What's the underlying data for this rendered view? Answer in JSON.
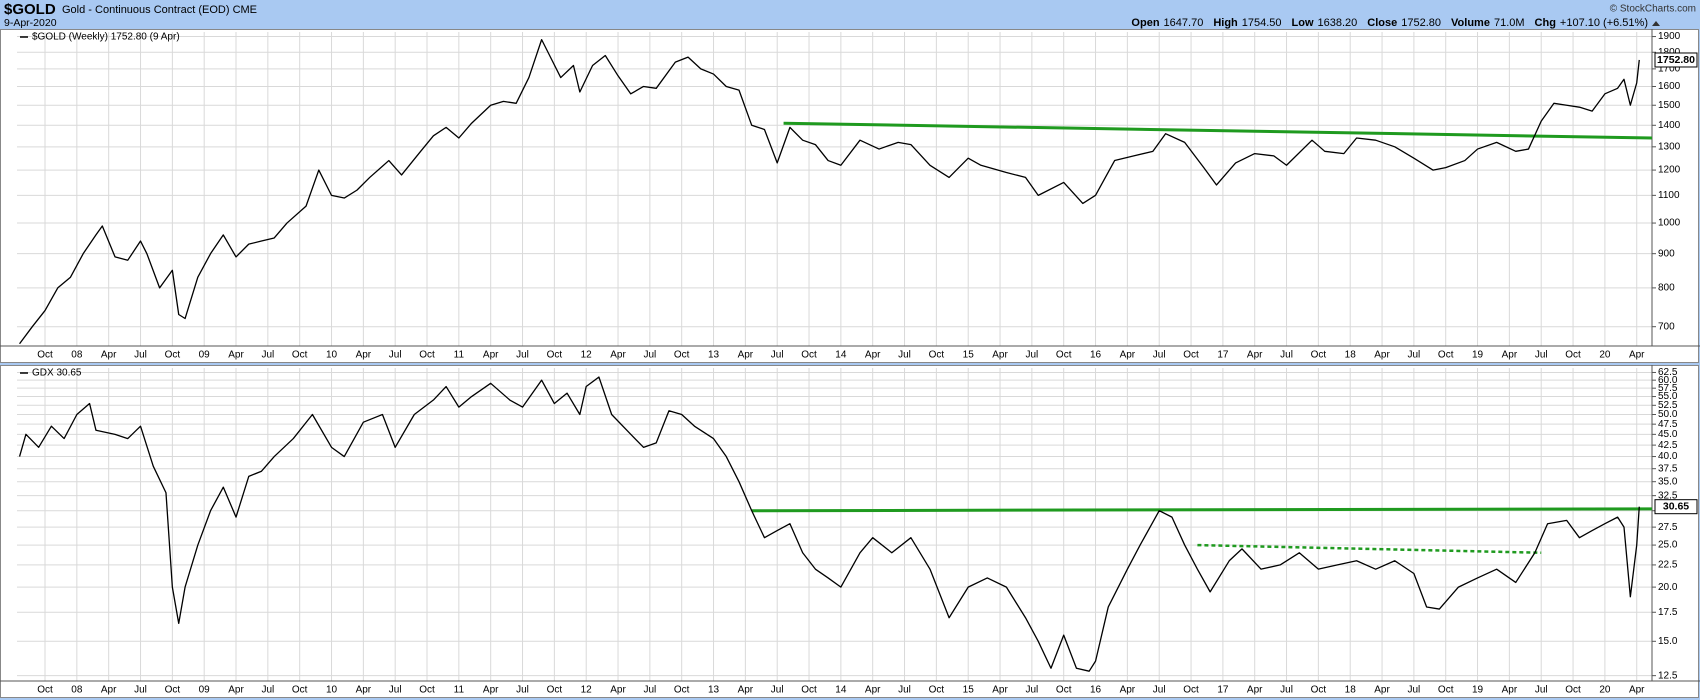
{
  "header": {
    "symbol": "$GOLD",
    "description": "Gold - Continuous Contract (EOD) CME",
    "date": "9-Apr-2020",
    "quote": [
      {
        "label": "Open",
        "value": "1647.70"
      },
      {
        "label": "High",
        "value": "1754.50"
      },
      {
        "label": "Low",
        "value": "1638.20"
      },
      {
        "label": "Close",
        "value": "1752.80"
      },
      {
        "label": "Volume",
        "value": "71.0M"
      },
      {
        "label": "Chg",
        "value": "+107.10 (+6.51%)"
      }
    ],
    "credit": "© StockCharts.com"
  },
  "chart_data": [
    {
      "type": "line",
      "log_scale": true,
      "grid": true,
      "last_value_label": "1752.80",
      "xlim": [
        2007.53,
        2020.37
      ],
      "ylim": [
        655,
        1930
      ],
      "yticks": [
        700,
        800,
        900,
        1000,
        1100,
        1200,
        1300,
        1400,
        1500,
        1600,
        1700,
        1800,
        1900
      ],
      "xticks": [
        {
          "value": 2007.75,
          "label": "Oct"
        },
        {
          "value": 2008,
          "label": "08"
        },
        {
          "value": 2008.25,
          "label": "Apr"
        },
        {
          "value": 2008.5,
          "label": "Jul"
        },
        {
          "value": 2008.75,
          "label": "Oct"
        },
        {
          "value": 2009,
          "label": "09"
        },
        {
          "value": 2009.25,
          "label": "Apr"
        },
        {
          "value": 2009.5,
          "label": "Jul"
        },
        {
          "value": 2009.75,
          "label": "Oct"
        },
        {
          "value": 2010,
          "label": "10"
        },
        {
          "value": 2010.25,
          "label": "Apr"
        },
        {
          "value": 2010.5,
          "label": "Jul"
        },
        {
          "value": 2010.75,
          "label": "Oct"
        },
        {
          "value": 2011,
          "label": "11"
        },
        {
          "value": 2011.25,
          "label": "Apr"
        },
        {
          "value": 2011.5,
          "label": "Jul"
        },
        {
          "value": 2011.75,
          "label": "Oct"
        },
        {
          "value": 2012,
          "label": "12"
        },
        {
          "value": 2012.25,
          "label": "Apr"
        },
        {
          "value": 2012.5,
          "label": "Jul"
        },
        {
          "value": 2012.75,
          "label": "Oct"
        },
        {
          "value": 2013,
          "label": "13"
        },
        {
          "value": 2013.25,
          "label": "Apr"
        },
        {
          "value": 2013.5,
          "label": "Jul"
        },
        {
          "value": 2013.75,
          "label": "Oct"
        },
        {
          "value": 2014,
          "label": "14"
        },
        {
          "value": 2014.25,
          "label": "Apr"
        },
        {
          "value": 2014.5,
          "label": "Jul"
        },
        {
          "value": 2014.75,
          "label": "Oct"
        },
        {
          "value": 2015,
          "label": "15"
        },
        {
          "value": 2015.25,
          "label": "Apr"
        },
        {
          "value": 2015.5,
          "label": "Jul"
        },
        {
          "value": 2015.75,
          "label": "Oct"
        },
        {
          "value": 2016,
          "label": "16"
        },
        {
          "value": 2016.25,
          "label": "Apr"
        },
        {
          "value": 2016.5,
          "label": "Jul"
        },
        {
          "value": 2016.75,
          "label": "Oct"
        },
        {
          "value": 2017,
          "label": "17"
        },
        {
          "value": 2017.25,
          "label": "Apr"
        },
        {
          "value": 2017.5,
          "label": "Jul"
        },
        {
          "value": 2017.75,
          "label": "Oct"
        },
        {
          "value": 2018,
          "label": "18"
        },
        {
          "value": 2018.25,
          "label": "Apr"
        },
        {
          "value": 2018.5,
          "label": "Jul"
        },
        {
          "value": 2018.75,
          "label": "Oct"
        },
        {
          "value": 2019,
          "label": "19"
        },
        {
          "value": 2019.25,
          "label": "Apr"
        },
        {
          "value": 2019.5,
          "label": "Jul"
        },
        {
          "value": 2019.75,
          "label": "Oct"
        },
        {
          "value": 2020,
          "label": "20"
        },
        {
          "value": 2020.25,
          "label": "Apr"
        }
      ],
      "x": [
        2007.55,
        2007.65,
        2007.75,
        2007.85,
        2007.95,
        2008.05,
        2008.15,
        2008.2,
        2008.3,
        2008.4,
        2008.5,
        2008.55,
        2008.65,
        2008.75,
        2008.8,
        2008.85,
        2008.95,
        2009.05,
        2009.15,
        2009.25,
        2009.35,
        2009.45,
        2009.55,
        2009.65,
        2009.8,
        2009.9,
        2010.0,
        2010.1,
        2010.2,
        2010.3,
        2010.45,
        2010.55,
        2010.7,
        2010.8,
        2010.9,
        2011.0,
        2011.1,
        2011.25,
        2011.35,
        2011.45,
        2011.55,
        2011.65,
        2011.7,
        2011.8,
        2011.9,
        2011.95,
        2012.05,
        2012.15,
        2012.25,
        2012.35,
        2012.45,
        2012.55,
        2012.7,
        2012.8,
        2012.9,
        2013.0,
        2013.1,
        2013.2,
        2013.3,
        2013.4,
        2013.5,
        2013.6,
        2013.7,
        2013.8,
        2013.9,
        2014.0,
        2014.15,
        2014.3,
        2014.45,
        2014.55,
        2014.7,
        2014.85,
        2015.0,
        2015.1,
        2015.3,
        2015.45,
        2015.55,
        2015.75,
        2015.9,
        2016.0,
        2016.15,
        2016.3,
        2016.45,
        2016.55,
        2016.7,
        2016.85,
        2016.95,
        2017.1,
        2017.25,
        2017.4,
        2017.5,
        2017.7,
        2017.8,
        2017.95,
        2018.05,
        2018.2,
        2018.35,
        2018.5,
        2018.65,
        2018.75,
        2018.9,
        2019.0,
        2019.15,
        2019.3,
        2019.4,
        2019.5,
        2019.6,
        2019.7,
        2019.8,
        2019.9,
        2020.0,
        2020.1,
        2020.15,
        2020.2,
        2020.25,
        2020.27
      ],
      "series": [
        {
          "name": "$GOLD (Weekly) 1752.80 (9 Apr)",
          "color": "#000000",
          "values": [
            660,
            700,
            740,
            800,
            830,
            900,
            960,
            990,
            890,
            880,
            940,
            900,
            800,
            850,
            730,
            720,
            830,
            900,
            960,
            890,
            930,
            940,
            950,
            1000,
            1060,
            1200,
            1100,
            1090,
            1120,
            1170,
            1240,
            1180,
            1280,
            1350,
            1390,
            1340,
            1410,
            1500,
            1520,
            1510,
            1650,
            1880,
            1800,
            1650,
            1720,
            1570,
            1720,
            1780,
            1660,
            1560,
            1600,
            1590,
            1740,
            1770,
            1700,
            1670,
            1600,
            1580,
            1400,
            1380,
            1230,
            1390,
            1330,
            1310,
            1240,
            1220,
            1330,
            1290,
            1320,
            1310,
            1220,
            1170,
            1250,
            1220,
            1190,
            1170,
            1100,
            1150,
            1070,
            1100,
            1240,
            1260,
            1280,
            1360,
            1320,
            1210,
            1140,
            1230,
            1270,
            1260,
            1220,
            1330,
            1280,
            1270,
            1340,
            1330,
            1300,
            1250,
            1200,
            1210,
            1240,
            1290,
            1320,
            1280,
            1290,
            1420,
            1510,
            1500,
            1490,
            1470,
            1560,
            1590,
            1640,
            1500,
            1620,
            1752.8
          ]
        }
      ],
      "trendlines": [
        {
          "x": [
            2013.55,
            2020.37
          ],
          "values": [
            1410,
            1340
          ],
          "color": "#1f9a1f",
          "dashed": false
        }
      ]
    },
    {
      "type": "line",
      "log_scale": true,
      "grid": true,
      "last_value_label": "30.65",
      "xlim": [
        2007.53,
        2020.37
      ],
      "ylim": [
        12.15,
        64
      ],
      "yticks": [
        12.5,
        {
          "value": 15,
          "label": "15.0"
        },
        17.5,
        {
          "value": 20,
          "label": "20.0"
        },
        22.5,
        {
          "value": 25,
          "label": "25.0"
        },
        27.5,
        {
          "value": 30,
          "label": "30.0"
        },
        32.5,
        {
          "value": 35,
          "label": "35.0"
        },
        37.5,
        {
          "value": 40,
          "label": "40.0"
        },
        42.5,
        {
          "value": 45,
          "label": "45.0"
        },
        47.5,
        {
          "value": 50,
          "label": "50.0"
        },
        52.5,
        {
          "value": 55,
          "label": "55.0"
        },
        57.5,
        {
          "value": 60,
          "label": "60.0"
        },
        62.5
      ],
      "xticks": [
        {
          "value": 2007.75,
          "label": "Oct"
        },
        {
          "value": 2008,
          "label": "08"
        },
        {
          "value": 2008.25,
          "label": "Apr"
        },
        {
          "value": 2008.5,
          "label": "Jul"
        },
        {
          "value": 2008.75,
          "label": "Oct"
        },
        {
          "value": 2009,
          "label": "09"
        },
        {
          "value": 2009.25,
          "label": "Apr"
        },
        {
          "value": 2009.5,
          "label": "Jul"
        },
        {
          "value": 2009.75,
          "label": "Oct"
        },
        {
          "value": 2010,
          "label": "10"
        },
        {
          "value": 2010.25,
          "label": "Apr"
        },
        {
          "value": 2010.5,
          "label": "Jul"
        },
        {
          "value": 2010.75,
          "label": "Oct"
        },
        {
          "value": 2011,
          "label": "11"
        },
        {
          "value": 2011.25,
          "label": "Apr"
        },
        {
          "value": 2011.5,
          "label": "Jul"
        },
        {
          "value": 2011.75,
          "label": "Oct"
        },
        {
          "value": 2012,
          "label": "12"
        },
        {
          "value": 2012.25,
          "label": "Apr"
        },
        {
          "value": 2012.5,
          "label": "Jul"
        },
        {
          "value": 2012.75,
          "label": "Oct"
        },
        {
          "value": 2013,
          "label": "13"
        },
        {
          "value": 2013.25,
          "label": "Apr"
        },
        {
          "value": 2013.5,
          "label": "Jul"
        },
        {
          "value": 2013.75,
          "label": "Oct"
        },
        {
          "value": 2014,
          "label": "14"
        },
        {
          "value": 2014.25,
          "label": "Apr"
        },
        {
          "value": 2014.5,
          "label": "Jul"
        },
        {
          "value": 2014.75,
          "label": "Oct"
        },
        {
          "value": 2015,
          "label": "15"
        },
        {
          "value": 2015.25,
          "label": "Apr"
        },
        {
          "value": 2015.5,
          "label": "Jul"
        },
        {
          "value": 2015.75,
          "label": "Oct"
        },
        {
          "value": 2016,
          "label": "16"
        },
        {
          "value": 2016.25,
          "label": "Apr"
        },
        {
          "value": 2016.5,
          "label": "Jul"
        },
        {
          "value": 2016.75,
          "label": "Oct"
        },
        {
          "value": 2017,
          "label": "17"
        },
        {
          "value": 2017.25,
          "label": "Apr"
        },
        {
          "value": 2017.5,
          "label": "Jul"
        },
        {
          "value": 2017.75,
          "label": "Oct"
        },
        {
          "value": 2018,
          "label": "18"
        },
        {
          "value": 2018.25,
          "label": "Apr"
        },
        {
          "value": 2018.5,
          "label": "Jul"
        },
        {
          "value": 2018.75,
          "label": "Oct"
        },
        {
          "value": 2019,
          "label": "19"
        },
        {
          "value": 2019.25,
          "label": "Apr"
        },
        {
          "value": 2019.5,
          "label": "Jul"
        },
        {
          "value": 2019.75,
          "label": "Oct"
        },
        {
          "value": 2020,
          "label": "20"
        },
        {
          "value": 2020.25,
          "label": "Apr"
        }
      ],
      "x": [
        2007.55,
        2007.6,
        2007.7,
        2007.8,
        2007.9,
        2008.0,
        2008.1,
        2008.15,
        2008.3,
        2008.4,
        2008.5,
        2008.6,
        2008.7,
        2008.75,
        2008.8,
        2008.85,
        2008.95,
        2009.05,
        2009.15,
        2009.25,
        2009.35,
        2009.45,
        2009.55,
        2009.7,
        2009.85,
        2010.0,
        2010.1,
        2010.25,
        2010.4,
        2010.5,
        2010.65,
        2010.8,
        2010.9,
        2011.0,
        2011.1,
        2011.25,
        2011.4,
        2011.5,
        2011.65,
        2011.75,
        2011.85,
        2011.95,
        2012.0,
        2012.1,
        2012.2,
        2012.35,
        2012.45,
        2012.55,
        2012.65,
        2012.75,
        2012.85,
        2013.0,
        2013.1,
        2013.2,
        2013.3,
        2013.4,
        2013.5,
        2013.6,
        2013.7,
        2013.8,
        2013.9,
        2014.0,
        2014.15,
        2014.25,
        2014.4,
        2014.55,
        2014.7,
        2014.85,
        2015.0,
        2015.15,
        2015.3,
        2015.45,
        2015.55,
        2015.65,
        2015.75,
        2015.85,
        2015.95,
        2016.0,
        2016.1,
        2016.25,
        2016.35,
        2016.5,
        2016.6,
        2016.7,
        2016.8,
        2016.9,
        2017.05,
        2017.15,
        2017.3,
        2017.45,
        2017.6,
        2017.75,
        2017.9,
        2018.05,
        2018.2,
        2018.35,
        2018.5,
        2018.6,
        2018.7,
        2018.85,
        2019.0,
        2019.15,
        2019.3,
        2019.45,
        2019.55,
        2019.7,
        2019.8,
        2019.9,
        2020.0,
        2020.1,
        2020.15,
        2020.2,
        2020.25,
        2020.27
      ],
      "series": [
        {
          "name": "GDX 30.65",
          "color": "#000000",
          "values": [
            40,
            45,
            42,
            47,
            44,
            50,
            53,
            46,
            45,
            44,
            47,
            38,
            33,
            20,
            16.5,
            20,
            25,
            30,
            34,
            29,
            36,
            37,
            40,
            44,
            50,
            42,
            40,
            48,
            50,
            42,
            50,
            54,
            58,
            52,
            55,
            59,
            54,
            52,
            60,
            53,
            56,
            50,
            58,
            61,
            50,
            45,
            42,
            43,
            51,
            50,
            47,
            44,
            40,
            35,
            30,
            26,
            27,
            28,
            24,
            22,
            21,
            20,
            24,
            26,
            24,
            26,
            22,
            17,
            20,
            21,
            20,
            17,
            15,
            13,
            15.5,
            13,
            12.8,
            13.5,
            18,
            22,
            25,
            30,
            29,
            25,
            22,
            19.5,
            23,
            24.5,
            22,
            22.5,
            24,
            22,
            22.5,
            23,
            22,
            23,
            21.5,
            18,
            17.8,
            20,
            21,
            22,
            20.5,
            24,
            28,
            28.5,
            26,
            27,
            28,
            29,
            27.5,
            19,
            25,
            30.65
          ]
        }
      ],
      "trendlines": [
        {
          "x": [
            2013.3,
            2020.37
          ],
          "values": [
            30,
            30.3
          ],
          "color": "#1f9a1f",
          "dashed": false
        },
        {
          "x": [
            2016.8,
            2019.5
          ],
          "values": [
            25,
            24
          ],
          "color": "#1f9a1f",
          "dashed": true
        }
      ]
    }
  ]
}
